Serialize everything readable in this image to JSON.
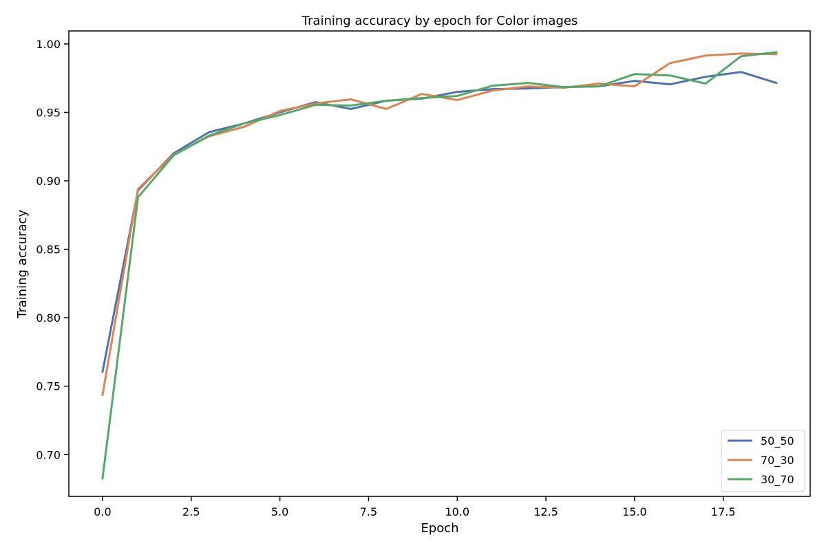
{
  "chart_data": {
    "type": "line",
    "title": "Training accuracy by epoch for Color images",
    "xlabel": "Epoch",
    "ylabel": "Training accuracy",
    "xlim": [
      -0.95,
      19.95
    ],
    "ylim": [
      0.6695,
      1.0095
    ],
    "xticks": [
      0.0,
      2.5,
      5.0,
      7.5,
      10.0,
      12.5,
      15.0,
      17.5
    ],
    "xtick_labels": [
      "0.0",
      "2.5",
      "5.0",
      "7.5",
      "10.0",
      "12.5",
      "15.0",
      "17.5"
    ],
    "yticks": [
      0.7,
      0.75,
      0.8,
      0.85,
      0.9,
      0.95,
      1.0
    ],
    "ytick_labels": [
      "0.70",
      "0.75",
      "0.80",
      "0.85",
      "0.90",
      "0.95",
      "1.00"
    ],
    "grid": false,
    "legend_position": "lower-right",
    "x": [
      0,
      1,
      2,
      3,
      4,
      5,
      6,
      7,
      8,
      9,
      10,
      11,
      12,
      13,
      14,
      15,
      16,
      17,
      18,
      19
    ],
    "series": [
      {
        "name": "50_50",
        "color": "#4c72b0",
        "values": [
          0.7605,
          0.893,
          0.92,
          0.9355,
          0.942,
          0.95,
          0.9575,
          0.9525,
          0.9585,
          0.96,
          0.965,
          0.967,
          0.9675,
          0.9685,
          0.969,
          0.973,
          0.9705,
          0.976,
          0.9795,
          0.9715
        ]
      },
      {
        "name": "70_30",
        "color": "#dd8452",
        "values": [
          0.7435,
          0.894,
          0.919,
          0.9325,
          0.9395,
          0.951,
          0.9565,
          0.9595,
          0.9525,
          0.9635,
          0.959,
          0.966,
          0.969,
          0.968,
          0.971,
          0.969,
          0.986,
          0.9915,
          0.993,
          0.9925
        ]
      },
      {
        "name": "30_70",
        "color": "#55a868",
        "values": [
          0.6825,
          0.888,
          0.9185,
          0.933,
          0.942,
          0.948,
          0.9555,
          0.955,
          0.9585,
          0.9605,
          0.962,
          0.9695,
          0.9715,
          0.9685,
          0.969,
          0.978,
          0.977,
          0.971,
          0.991,
          0.994
        ]
      }
    ]
  }
}
